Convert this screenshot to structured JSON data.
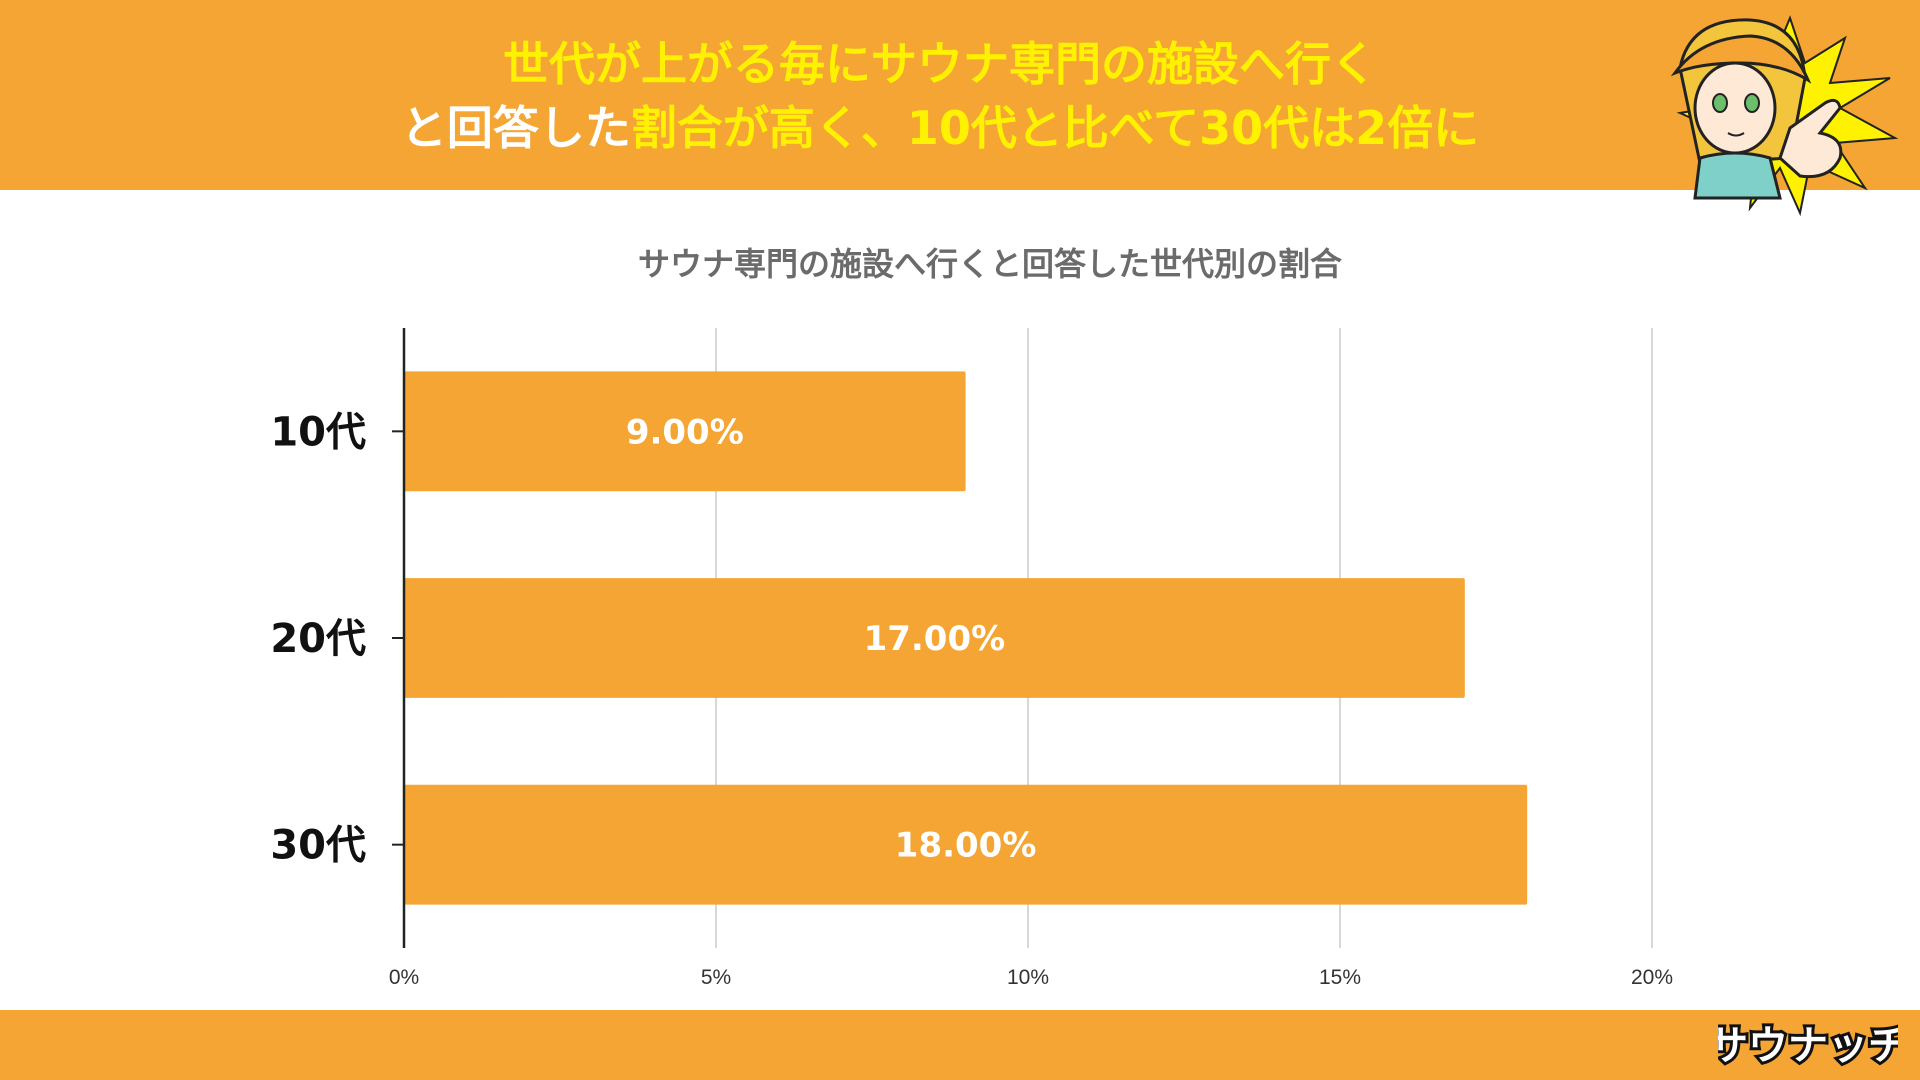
{
  "header": {
    "line1": "世代が上がる毎にサウナ専門の施設へ行く",
    "line2_prefix": "と回答した",
    "line2_highlight": "割合が高く、10代と比べて30代は2倍に"
  },
  "colors": {
    "accent": "#f4a533",
    "headline_yellow": "#fff200",
    "bar": "#f4a533",
    "grid": "#cccccc",
    "axis": "#222222"
  },
  "mascot": {
    "icon": "mascot-pointing-character-icon"
  },
  "footer": {
    "logo_icon": "saunatch-logo-icon",
    "logo_text": "サウナッチ"
  },
  "chart_data": {
    "type": "bar",
    "orientation": "horizontal",
    "title": "サウナ専門の施設へ行くと回答した世代別の割合",
    "categories": [
      "10代",
      "20代",
      "30代"
    ],
    "values": [
      9,
      17,
      18
    ],
    "data_labels": [
      "9.00%",
      "17.00%",
      "18.00%"
    ],
    "x_ticks": [
      0,
      5,
      10,
      15,
      20
    ],
    "x_tick_labels": [
      "0%",
      "5%",
      "10%",
      "15%",
      "20%"
    ],
    "xlim": [
      0,
      20
    ],
    "xlabel": "",
    "ylabel": "",
    "grid": true,
    "legend": "none"
  }
}
